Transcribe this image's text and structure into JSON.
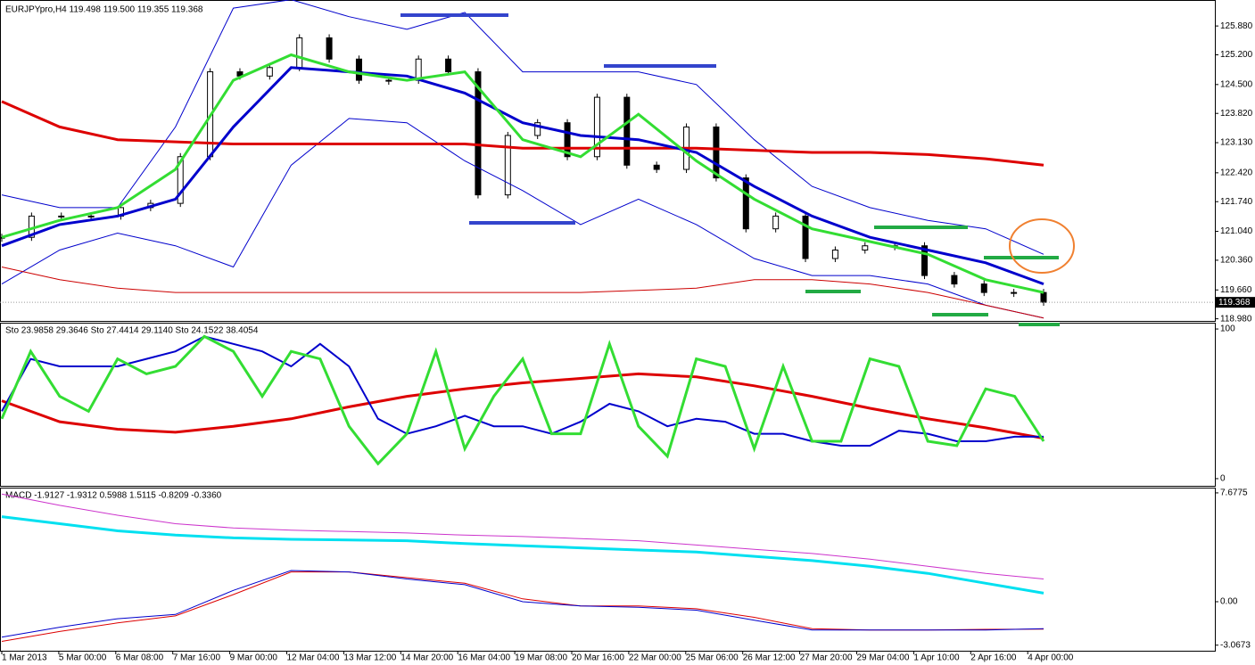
{
  "chart_data": [
    {
      "type": "line",
      "title": "EURJPYpro,H4  119.498 119.500 119.355 119.368",
      "ylim": [
        118.93,
        126.45
      ],
      "yticks": [
        {
          "value": 125.88,
          "label": "125.880"
        },
        {
          "value": 125.2,
          "label": "125.200"
        },
        {
          "value": 124.5,
          "label": "124.500"
        },
        {
          "value": 123.82,
          "label": "123.820"
        },
        {
          "value": 123.13,
          "label": "123.130"
        },
        {
          "value": 122.42,
          "label": "122.420"
        },
        {
          "value": 121.74,
          "label": "121.740"
        },
        {
          "value": 121.04,
          "label": "121.040"
        },
        {
          "value": 120.36,
          "label": "120.360"
        },
        {
          "value": 119.66,
          "label": "119.660"
        },
        {
          "value": 118.98,
          "label": "118.980"
        }
      ],
      "last_price": {
        "value": 119.368,
        "label": "119.368"
      },
      "series": [
        {
          "style": "candles",
          "color": "#000000",
          "values": [
            120.9,
            121.4,
            121.4,
            121.4,
            121.6,
            121.7,
            122.8,
            124.8,
            124.7,
            124.9,
            125.6,
            125.1,
            124.6,
            124.6,
            125.1,
            124.8,
            121.9,
            123.3,
            123.6,
            122.8,
            124.2,
            122.6,
            122.5,
            123.5,
            122.3,
            121.1,
            121.4,
            120.4,
            120.6,
            120.7,
            120.7,
            120.0,
            119.8,
            119.6,
            119.6,
            119.37
          ]
        },
        {
          "color": "#0000cc",
          "width": 1,
          "values": [
            121.9,
            121.6,
            121.6,
            123.5,
            126.3,
            126.5,
            126.1,
            125.8,
            126.2,
            124.8,
            124.8,
            124.8,
            124.5,
            123.2,
            122.1,
            121.6,
            121.3,
            121.1,
            120.5
          ]
        },
        {
          "color": "#0000cc",
          "width": 1,
          "values": [
            119.8,
            120.6,
            121.0,
            120.7,
            120.2,
            122.6,
            123.7,
            123.6,
            122.7,
            122.0,
            121.2,
            121.8,
            121.2,
            120.4,
            120.0,
            120.0,
            119.8,
            119.3,
            119.0
          ]
        },
        {
          "color": "#cc0000",
          "width": 1,
          "values": [
            120.2,
            119.9,
            119.7,
            119.6,
            119.6,
            119.6,
            119.6,
            119.6,
            119.6,
            119.6,
            119.6,
            119.65,
            119.7,
            119.9,
            119.9,
            119.8,
            119.6,
            119.3,
            119.0
          ]
        },
        {
          "color": "#dd0000",
          "width": 3,
          "values": [
            124.1,
            123.5,
            123.2,
            123.15,
            123.1,
            123.1,
            123.1,
            123.1,
            123.1,
            123.0,
            123.0,
            123.0,
            123.0,
            122.95,
            122.9,
            122.9,
            122.85,
            122.75,
            122.6
          ]
        },
        {
          "color": "#0000cc",
          "width": 3,
          "values": [
            120.7,
            121.2,
            121.4,
            121.8,
            123.5,
            124.9,
            124.8,
            124.7,
            124.3,
            123.6,
            123.3,
            123.2,
            122.9,
            122.1,
            121.4,
            120.9,
            120.6,
            120.3,
            119.8
          ]
        },
        {
          "color": "#33dd33",
          "width": 3,
          "values": [
            120.9,
            121.3,
            121.6,
            122.5,
            124.6,
            125.2,
            124.8,
            124.6,
            124.8,
            123.2,
            122.8,
            123.8,
            122.7,
            121.8,
            121.1,
            120.8,
            120.5,
            119.9,
            119.6
          ]
        }
      ]
    },
    {
      "type": "line",
      "title": "Sto 23.9858 29.3646  Sto 27.4414 29.1140  Sto 24.1522 38.4054",
      "ylim": [
        -4.8,
        104.2
      ],
      "yticks": [
        100,
        0
      ],
      "series": [
        {
          "color": "#dd0000",
          "width": 3,
          "values": [
            52,
            38,
            33,
            31,
            35,
            40,
            48,
            55,
            60,
            64,
            67,
            70,
            68,
            62,
            55,
            47,
            40,
            34,
            27
          ]
        },
        {
          "color": "#0000cc",
          "width": 2,
          "values": [
            45,
            80,
            75,
            75,
            75,
            80,
            85,
            95,
            90,
            85,
            75,
            90,
            75,
            40,
            30,
            35,
            42,
            35,
            35,
            30,
            38,
            50,
            45,
            35,
            40,
            38,
            30,
            30,
            25,
            22,
            22,
            32,
            30,
            25,
            25,
            28,
            28
          ]
        },
        {
          "color": "#33dd33",
          "width": 3,
          "values": [
            40,
            85,
            55,
            45,
            80,
            70,
            75,
            95,
            85,
            55,
            85,
            80,
            35,
            10,
            30,
            85,
            20,
            55,
            80,
            30,
            30,
            90,
            35,
            15,
            80,
            75,
            20,
            75,
            25,
            25,
            80,
            75,
            25,
            22,
            60,
            55,
            25
          ]
        }
      ]
    },
    {
      "type": "line",
      "title": "MACD -1.9127 -1.9312 0.5988 1.5115 -0.8209 -0.3360",
      "ylim": [
        -3.46,
        8.05
      ],
      "yticks": [
        7.6775,
        {
          "value": 0,
          "label": "0.00"
        },
        -3.0673
      ],
      "series": [
        {
          "color": "#cc33cc",
          "width": 1,
          "values": [
            7.6,
            6.8,
            6.1,
            5.5,
            5.2,
            5.05,
            4.95,
            4.85,
            4.7,
            4.6,
            4.45,
            4.3,
            4.0,
            3.7,
            3.4,
            3.0,
            2.5,
            2.0,
            1.6
          ]
        },
        {
          "color": "#00e0f0",
          "width": 3,
          "values": [
            6.0,
            5.5,
            5.0,
            4.7,
            4.5,
            4.4,
            4.35,
            4.3,
            4.1,
            3.95,
            3.8,
            3.65,
            3.5,
            3.2,
            2.9,
            2.5,
            2.0,
            1.3,
            0.6
          ]
        },
        {
          "color": "#dd0000",
          "width": 1,
          "values": [
            -2.8,
            -2.1,
            -1.5,
            -1.0,
            0.5,
            2.1,
            2.1,
            1.7,
            1.3,
            0.2,
            -0.3,
            -0.3,
            -0.5,
            -1.1,
            -1.9,
            -2.0,
            -2.0,
            -1.95,
            -1.93
          ]
        },
        {
          "color": "#0000cc",
          "width": 1,
          "values": [
            -2.5,
            -1.8,
            -1.2,
            -0.9,
            0.8,
            2.2,
            2.1,
            1.6,
            1.2,
            0.0,
            -0.3,
            -0.4,
            -0.6,
            -1.3,
            -2.0,
            -2.0,
            -2.0,
            -2.0,
            -1.9
          ]
        }
      ],
      "xtick_labels": [
        "1 Mar 2013",
        "5 Mar 00:00",
        "6 Mar 08:00",
        "7 Mar 16:00",
        "9 Mar 00:00",
        "12 Mar 04:00",
        "13 Mar 12:00",
        "14 Mar 20:00",
        "16 Mar 04:00",
        "19 Mar 08:00",
        "20 Mar 16:00",
        "22 Mar 00:00",
        "25 Mar 06:00",
        "26 Mar 12:00",
        "27 Mar 20:00",
        "29 Mar 04:00",
        "1 Apr 10:00",
        "2 Apr 16:00",
        "4 Apr 00:00"
      ]
    }
  ]
}
